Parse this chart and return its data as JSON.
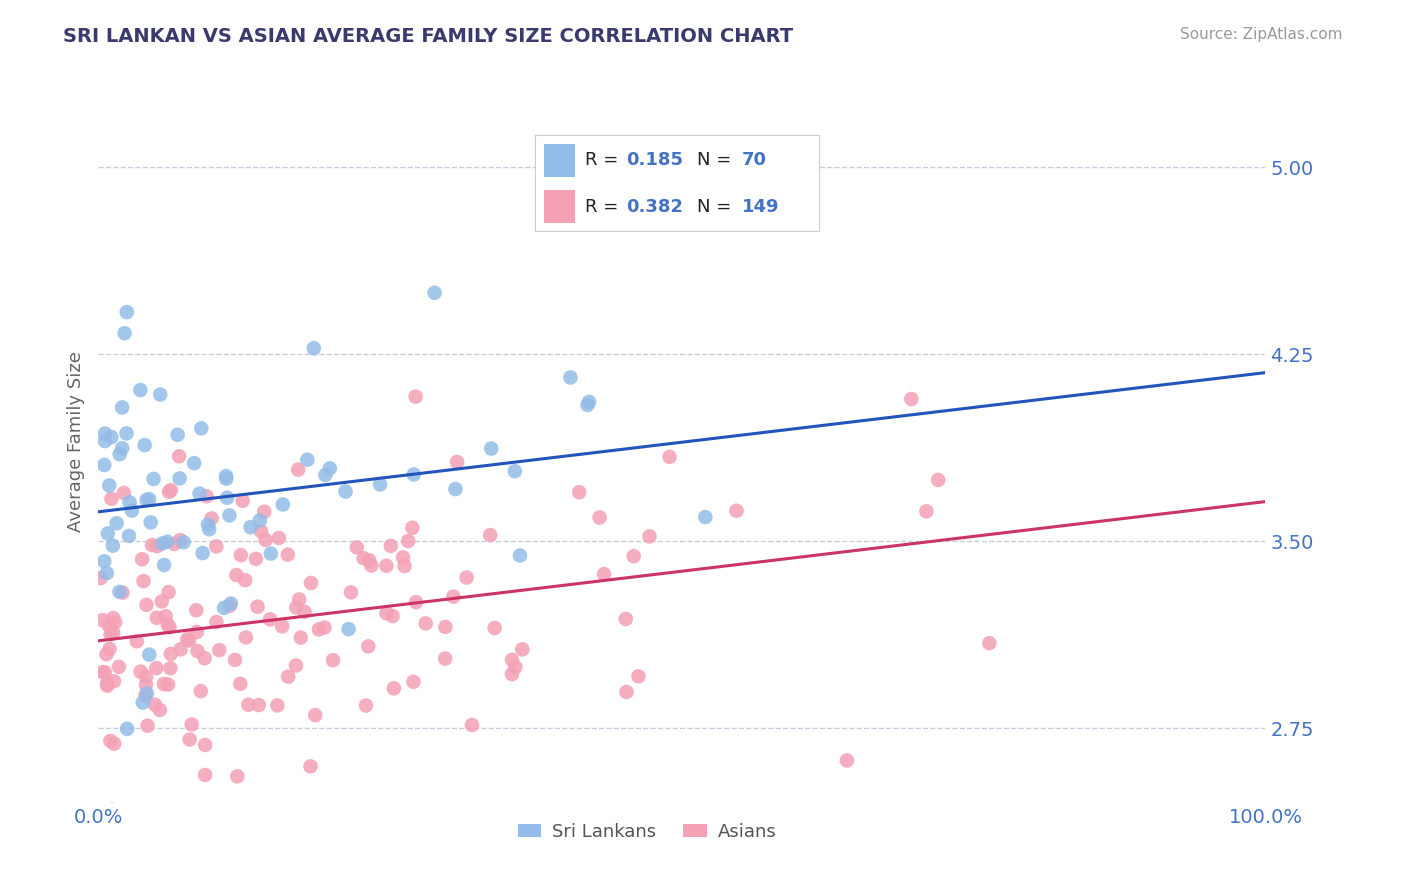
{
  "title": "SRI LANKAN VS ASIAN AVERAGE FAMILY SIZE CORRELATION CHART",
  "source_text": "Source: ZipAtlas.com",
  "ylabel": "Average Family Size",
  "xlim": [
    0,
    100
  ],
  "ylim": [
    2.45,
    5.35
  ],
  "yticks": [
    2.75,
    3.5,
    4.25,
    5.0
  ],
  "xticklabels": [
    "0.0%",
    "100.0%"
  ],
  "title_color": "#3a3a6e",
  "axis_color": "#4472c4",
  "background_color": "#ffffff",
  "grid_color": "#c0c8d8",
  "sri_lankan_color": "#93bce8",
  "asian_color": "#f4a0b5",
  "sri_lankan_line_color": "#2255bb",
  "asian_line_color": "#cc3366",
  "legend_r1_text": "R = ",
  "legend_r1_val": "0.185",
  "legend_n1_text": "N = ",
  "legend_n1_val": "70",
  "legend_r2_text": "R = ",
  "legend_r2_val": "0.382",
  "legend_n2_text": "N = ",
  "legend_n2_val": "149",
  "legend_label1": "Sri Lankans",
  "legend_label2": "Asians",
  "R1": 0.185,
  "N1": 70,
  "R2": 0.382,
  "N2": 149,
  "blue_intercept": 3.62,
  "blue_slope": 0.0048,
  "pink_intercept": 3.12,
  "pink_slope": 0.0058
}
